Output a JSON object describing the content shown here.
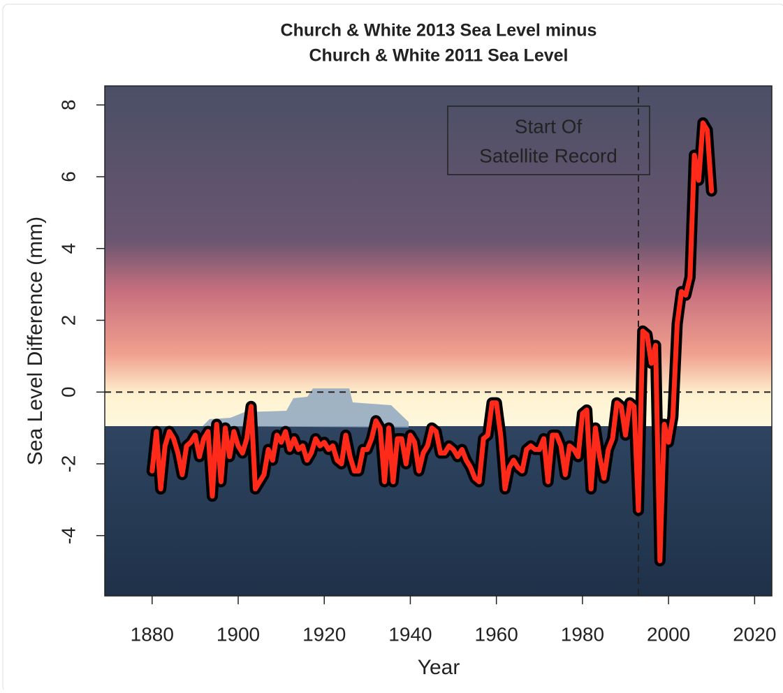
{
  "chart_data": {
    "type": "line",
    "title": [
      "Church & White 2013 Sea Level minus",
      "Church & White 2011 Sea Level"
    ],
    "x_label": "Year",
    "y_label": "Sea Level Difference (mm)",
    "annotation": [
      "Start Of",
      "Satellite Record"
    ],
    "vline": 1993,
    "hline": 0,
    "xlim": [
      1869,
      2024
    ],
    "ylim": [
      -5.68,
      8.53
    ],
    "xticks": [
      1880,
      1900,
      1920,
      1940,
      1960,
      1980,
      2000,
      2020
    ],
    "yticks": [
      -4,
      -2,
      0,
      2,
      4,
      6,
      8
    ],
    "x": [
      1880,
      1881,
      1882,
      1883,
      1884,
      1885,
      1886,
      1887,
      1888,
      1889,
      1890,
      1891,
      1892,
      1893,
      1894,
      1895,
      1896,
      1897,
      1898,
      1899,
      1900,
      1901,
      1902,
      1903,
      1904,
      1905,
      1906,
      1907,
      1908,
      1909,
      1910,
      1911,
      1912,
      1913,
      1914,
      1915,
      1916,
      1917,
      1918,
      1919,
      1920,
      1921,
      1922,
      1923,
      1924,
      1925,
      1926,
      1927,
      1928,
      1929,
      1930,
      1931,
      1932,
      1933,
      1934,
      1935,
      1936,
      1937,
      1938,
      1939,
      1940,
      1941,
      1942,
      1943,
      1944,
      1945,
      1946,
      1947,
      1948,
      1949,
      1950,
      1951,
      1952,
      1953,
      1954,
      1955,
      1956,
      1957,
      1958,
      1959,
      1960,
      1961,
      1962,
      1963,
      1964,
      1965,
      1966,
      1967,
      1968,
      1969,
      1970,
      1971,
      1972,
      1973,
      1974,
      1975,
      1976,
      1977,
      1978,
      1979,
      1980,
      1981,
      1982,
      1983,
      1984,
      1985,
      1986,
      1987,
      1988,
      1989,
      1990,
      1991,
      1992,
      1993,
      1994,
      1995,
      1996,
      1997,
      1998,
      1999,
      2000,
      2001,
      2002,
      2003,
      2004,
      2005,
      2006,
      2007,
      2008,
      2009,
      2010
    ],
    "series": [
      {
        "color": "#ff2a1a",
        "outline": "#000000",
        "values": [
          -2.2,
          -1.1,
          -2.7,
          -1.5,
          -1.1,
          -1.3,
          -1.7,
          -2.3,
          -1.5,
          -1.4,
          -1.2,
          -1.8,
          -1.3,
          -1.1,
          -2.9,
          -0.9,
          -2.5,
          -1.0,
          -1.8,
          -1.1,
          -1.5,
          -1.7,
          -1.3,
          -0.4,
          -2.7,
          -2.5,
          -2.3,
          -1.6,
          -1.9,
          -1.2,
          -1.4,
          -1.1,
          -1.6,
          -1.3,
          -1.6,
          -1.5,
          -1.9,
          -1.7,
          -1.3,
          -1.5,
          -1.4,
          -1.6,
          -1.5,
          -1.9,
          -2.0,
          -1.2,
          -1.8,
          -2.2,
          -2.2,
          -1.6,
          -1.6,
          -1.3,
          -0.8,
          -1.0,
          -2.5,
          -1.0,
          -2.5,
          -1.3,
          -1.3,
          -2.0,
          -1.2,
          -1.4,
          -2.2,
          -1.7,
          -1.5,
          -1.0,
          -1.1,
          -1.7,
          -1.7,
          -1.5,
          -1.6,
          -1.8,
          -1.6,
          -1.9,
          -2.1,
          -2.4,
          -2.5,
          -1.3,
          -1.2,
          -0.3,
          -0.3,
          -1.2,
          -2.7,
          -2.1,
          -1.9,
          -2.1,
          -2.2,
          -1.6,
          -1.5,
          -1.6,
          -1.6,
          -1.3,
          -2.5,
          -1.2,
          -1.2,
          -1.5,
          -2.3,
          -1.5,
          -1.6,
          -1.8,
          -0.6,
          -0.5,
          -2.7,
          -1.0,
          -1.8,
          -2.4,
          -1.6,
          -1.3,
          -0.3,
          -0.4,
          -1.2,
          -0.3,
          -0.4,
          -3.3,
          1.7,
          1.6,
          0.8,
          1.3,
          -4.7,
          -0.9,
          -1.4,
          -0.7,
          1.9,
          2.8,
          2.7,
          3.2,
          6.6,
          5.9,
          7.5,
          7.3,
          5.6
        ]
      }
    ]
  }
}
